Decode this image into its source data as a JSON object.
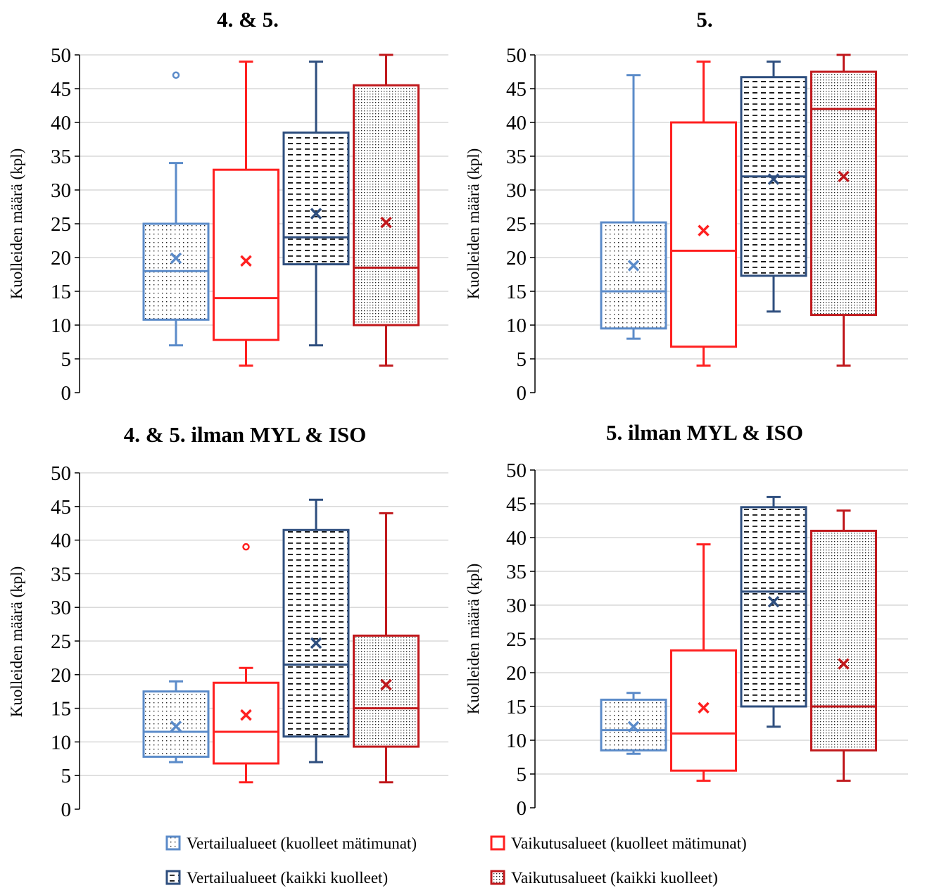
{
  "colors": {
    "vert_matimunat": "#5B8BC9",
    "vaik_matimunat": "#FF2020",
    "vert_kaikki": "#2E4E7E",
    "vaik_kaikki": "#C0181C",
    "grid": "#D9D9D9",
    "axis": "#000000"
  },
  "chart_data": [
    {
      "type": "box",
      "title": "4. & 5.",
      "ylabel": "Kuolleiden määrä (kpl)",
      "ylim": [
        0,
        50
      ],
      "yticks": [
        0,
        5,
        10,
        15,
        20,
        25,
        30,
        35,
        40,
        45,
        50
      ],
      "grid": true,
      "series": [
        {
          "name": "Vertailualueet (kuolleet mätimunat)",
          "min": 7,
          "q1": 10.8,
          "median": 18,
          "q3": 25,
          "max": 34,
          "mean": 19.9,
          "outliers": [
            47
          ]
        },
        {
          "name": "Vaikutusalueet (kuolleet mätimunat)",
          "min": 4,
          "q1": 7.8,
          "median": 14,
          "q3": 33,
          "max": 49,
          "mean": 19.5,
          "outliers": []
        },
        {
          "name": "Vertailualueet (kaikki kuolleet)",
          "min": 7,
          "q1": 19,
          "median": 23,
          "q3": 38.5,
          "max": 49,
          "mean": 26.5,
          "outliers": []
        },
        {
          "name": "Vaikutusalueet (kaikki kuolleet)",
          "min": 4,
          "q1": 10,
          "median": 18.5,
          "q3": 45.5,
          "max": 50,
          "mean": 25.2,
          "outliers": []
        }
      ]
    },
    {
      "type": "box",
      "title": "5.",
      "ylabel": "Kuolleiden määrä (kpl)",
      "ylim": [
        0,
        50
      ],
      "yticks": [
        0,
        5,
        10,
        15,
        20,
        25,
        30,
        35,
        40,
        45,
        50
      ],
      "grid": true,
      "series": [
        {
          "name": "Vertailualueet (kuolleet mätimunat)",
          "min": 8,
          "q1": 9.5,
          "median": 15,
          "q3": 25.2,
          "max": 47,
          "mean": 18.8,
          "outliers": []
        },
        {
          "name": "Vaikutusalueet (kuolleet mätimunat)",
          "min": 4,
          "q1": 6.8,
          "median": 21,
          "q3": 40,
          "max": 49,
          "mean": 24,
          "outliers": []
        },
        {
          "name": "Vertailualueet (kaikki kuolleet)",
          "min": 12,
          "q1": 17.3,
          "median": 32,
          "q3": 46.7,
          "max": 49,
          "mean": 31.6,
          "outliers": []
        },
        {
          "name": "Vaikutusalueet (kaikki kuolleet)",
          "min": 4,
          "q1": 11.5,
          "median": 42,
          "q3": 47.5,
          "max": 50,
          "mean": 32,
          "outliers": []
        }
      ]
    },
    {
      "type": "box",
      "title": "4. & 5. ilman MYL & ISO",
      "ylabel": "Kuolleiden määrä (kpl)",
      "ylim": [
        0,
        50
      ],
      "yticks": [
        0,
        5,
        10,
        15,
        20,
        25,
        30,
        35,
        40,
        45,
        50
      ],
      "grid": true,
      "series": [
        {
          "name": "Vertailualueet (kuolleet mätimunat)",
          "min": 7,
          "q1": 7.8,
          "median": 11.5,
          "q3": 17.5,
          "max": 19,
          "mean": 12.3,
          "outliers": []
        },
        {
          "name": "Vaikutusalueet (kuolleet mätimunat)",
          "min": 4,
          "q1": 6.8,
          "median": 11.5,
          "q3": 18.8,
          "max": 21,
          "mean": 14,
          "outliers": [
            39
          ]
        },
        {
          "name": "Vertailualueet (kaikki kuolleet)",
          "min": 7,
          "q1": 10.8,
          "median": 21.5,
          "q3": 41.5,
          "max": 46,
          "mean": 24.7,
          "outliers": []
        },
        {
          "name": "Vaikutusalueet (kaikki kuolleet)",
          "min": 4,
          "q1": 9.3,
          "median": 15,
          "q3": 25.8,
          "max": 44,
          "mean": 18.5,
          "outliers": []
        }
      ]
    },
    {
      "type": "box",
      "title": "5. ilman MYL & ISO",
      "ylabel": "Kuolleiden määrä (kpl)",
      "ylim": [
        0,
        50
      ],
      "yticks": [
        0,
        5,
        10,
        15,
        20,
        25,
        30,
        35,
        40,
        45,
        50
      ],
      "grid": true,
      "series": [
        {
          "name": "Vertailualueet (kuolleet mätimunat)",
          "min": 8,
          "q1": 8.5,
          "median": 11.5,
          "q3": 16,
          "max": 17,
          "mean": 12,
          "outliers": []
        },
        {
          "name": "Vaikutusalueet (kuolleet mätimunat)",
          "min": 4,
          "q1": 5.5,
          "median": 11,
          "q3": 23.3,
          "max": 39,
          "mean": 14.8,
          "outliers": []
        },
        {
          "name": "Vertailualueet (kaikki kuolleet)",
          "min": 12,
          "q1": 15,
          "median": 32,
          "q3": 44.5,
          "max": 46,
          "mean": 30.5,
          "outliers": []
        },
        {
          "name": "Vaikutusalueet (kaikki kuolleet)",
          "min": 4,
          "q1": 8.5,
          "median": 15,
          "q3": 41,
          "max": 44,
          "mean": 21.3,
          "outliers": []
        }
      ]
    }
  ],
  "legend": {
    "position": "bottom-center",
    "items": [
      {
        "label": "Vertailualueet (kuolleet mätimunat)",
        "series": 0
      },
      {
        "label": "Vaikutusalueet (kuolleet mätimunat)",
        "series": 1
      },
      {
        "label": "Vertailualueet (kaikki kuolleet)",
        "series": 2
      },
      {
        "label": "Vaikutusalueet (kaikki kuolleet)",
        "series": 3
      }
    ]
  }
}
